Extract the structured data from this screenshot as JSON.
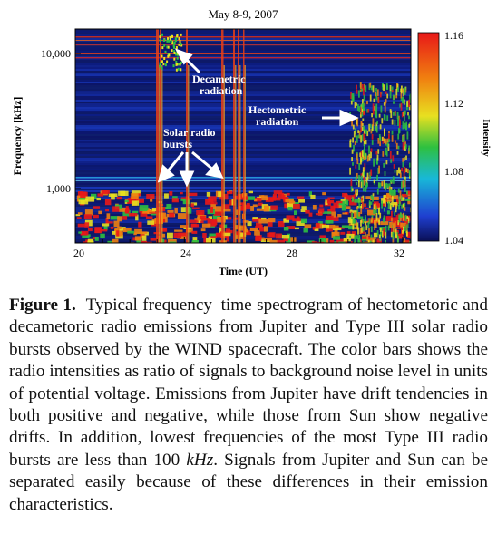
{
  "figure": {
    "title": "May 8-9, 2007",
    "chart_data": {
      "type": "heatmap",
      "title": "May 8-9, 2007",
      "xlabel": "Time (UT)",
      "ylabel": "Frequency [kHz]",
      "x_ticks": [
        "20",
        "24",
        "28",
        "32"
      ],
      "xlim": [
        20,
        32.3
      ],
      "y_ticks": [
        "1,000",
        "10,000"
      ],
      "y_scale": "log",
      "ylim": [
        300,
        14000
      ],
      "colorbar": {
        "label": "Intensity",
        "ticks": [
          "1.16",
          "1.12",
          "1.08",
          "1.04"
        ],
        "range": [
          1.04,
          1.16
        ],
        "colors": [
          "#0a0f55",
          "#1f3fd0",
          "#18b8d8",
          "#2ec040",
          "#e8e020",
          "#f08010",
          "#e81818"
        ]
      },
      "annotations": [
        {
          "label": "Decametric",
          "label2": "radiation"
        },
        {
          "label": "Hectometric",
          "label2": "radiation"
        },
        {
          "label": "Solar radio",
          "label2": "bursts"
        }
      ]
    }
  },
  "caption": {
    "lead": "Figure 1.",
    "text_before": "Typical frequency–time spectrogram of hectometoric and decametoric radio emissions from Jupiter and Type III solar radio bursts observed by the WIND spacecraft. The color bars shows the radio intensities as ratio of signals to background noise level in units of potential voltage. Emissions from Jupiter have drift tendencies in both positive and negative, while those from Sun show negative drifts. In addition, lowest frequencies of the most Type III radio bursts are less than 100",
    "unit": "kHz",
    "text_after": ". Signals from Jupiter and Sun can be separated easily because of these differences in their emission characteristics."
  }
}
